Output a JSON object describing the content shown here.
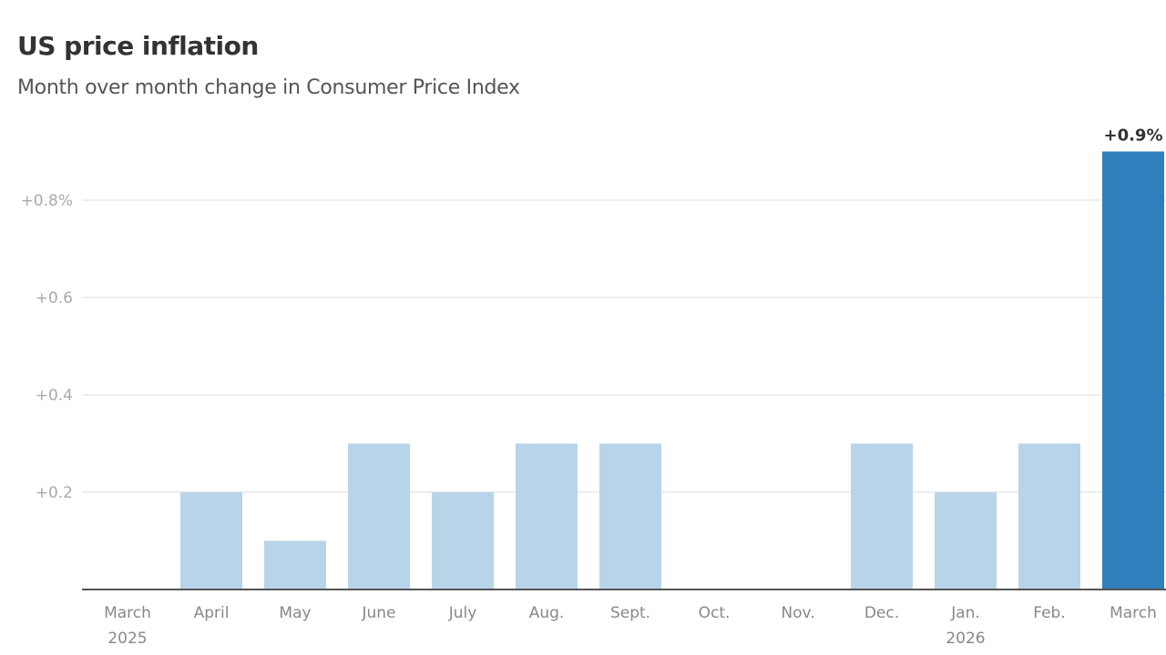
{
  "chart_data": {
    "type": "bar",
    "title": "US price inflation",
    "subtitle": "Month over month change in Consumer Price Index",
    "categories": [
      "March|2025",
      "April",
      "May",
      "June",
      "July",
      "Aug.",
      "Sept.",
      "Oct.",
      "Nov.",
      "Dec.",
      "Jan.|2026",
      "Feb.",
      "March"
    ],
    "values": [
      0,
      0.2,
      0.1,
      0.3,
      0.2,
      0.3,
      0.3,
      null,
      null,
      0.3,
      0.2,
      0.3,
      0.9
    ],
    "highlight_index": 12,
    "data_labels": [
      {
        "index": 12,
        "text": "+0.9%"
      }
    ],
    "yticks": [
      {
        "value": 0.2,
        "label": "+0.2"
      },
      {
        "value": 0.4,
        "label": "+0.4"
      },
      {
        "value": 0.6,
        "label": "+0.6"
      },
      {
        "value": 0.8,
        "label": "+0.8%"
      }
    ],
    "ylim": [
      0,
      0.9
    ],
    "grid": true,
    "xlabel": "",
    "ylabel": "",
    "colors": {
      "bar": "#b8d4e8",
      "highlight": "#2f7fbc",
      "grid": "#dddddd",
      "axis": "#555555"
    }
  }
}
